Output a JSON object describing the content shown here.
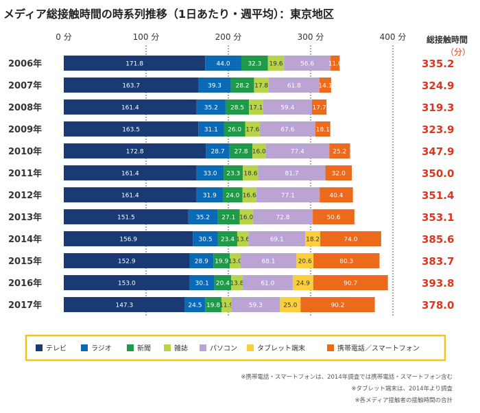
{
  "chart_data": {
    "type": "bar",
    "orientation": "horizontal",
    "stacked": true,
    "title": "メディア総接触時間の時系列推移（1日あたり・週平均）：東京地区",
    "x_ticks": [
      "0 分",
      "100 分",
      "200 分",
      "300 分",
      "400 分"
    ],
    "xlim": [
      0,
      400
    ],
    "categories": [
      "2006年",
      "2007年",
      "2008年",
      "2009年",
      "2010年",
      "2011年",
      "2012年",
      "2013年",
      "2014年",
      "2015年",
      "2016年",
      "2017年"
    ],
    "series": [
      {
        "name": "テレビ",
        "color": "#1a3a73",
        "values": [
          171.8,
          163.7,
          161.4,
          163.5,
          172.8,
          161.4,
          161.4,
          151.5,
          156.9,
          152.9,
          153.0,
          147.3
        ]
      },
      {
        "name": "ラジオ",
        "color": "#0a6ab5",
        "values": [
          44.0,
          39.3,
          35.2,
          31.1,
          28.7,
          33.0,
          31.9,
          35.2,
          30.5,
          28.9,
          30.1,
          24.5
        ]
      },
      {
        "name": "新聞",
        "color": "#1f9a48",
        "values": [
          32.3,
          28.2,
          28.5,
          26.0,
          27.8,
          23.3,
          24.0,
          27.1,
          23.4,
          19.9,
          20.4,
          19.8
        ]
      },
      {
        "name": "雑誌",
        "color": "#b7d44a",
        "values": [
          19.6,
          17.8,
          17.1,
          17.6,
          16.0,
          18.6,
          16.6,
          16.0,
          13.6,
          13.0,
          13.8,
          11.9
        ]
      },
      {
        "name": "パソコン",
        "color": "#b9a4d4",
        "values": [
          56.6,
          61.8,
          59.4,
          67.6,
          77.4,
          81.7,
          77.1,
          72.8,
          69.1,
          68.1,
          61.0,
          59.3
        ]
      },
      {
        "name": "タブレット端末",
        "color": "#f9cf3f",
        "values": [
          null,
          null,
          null,
          null,
          null,
          null,
          null,
          null,
          18.2,
          20.6,
          24.9,
          25.0
        ]
      },
      {
        "name": "携帯電話／スマートフォン",
        "color": "#ec6a1c",
        "values": [
          11.0,
          14.1,
          17.7,
          18.1,
          25.2,
          32.0,
          40.4,
          50.6,
          74.0,
          80.3,
          90.7,
          90.2
        ]
      }
    ],
    "totals_header": "総接触時間",
    "totals_unit": "（分）",
    "totals": [
      "335.2",
      "324.9",
      "319.3",
      "323.9",
      "347.9",
      "350.0",
      "351.4",
      "353.1",
      "385.6",
      "383.7",
      "393.8",
      "378.0"
    ],
    "legend_position": "bottom",
    "grid": "dashed vertical at 100-minute intervals",
    "notes": [
      "※携帯電話・スマートフォンは、2014年調査では携帯電話・スマートフォン含む",
      "※タブレット端末は、2014年より調査",
      "※各メディア接触者の接触時間の合計"
    ]
  }
}
